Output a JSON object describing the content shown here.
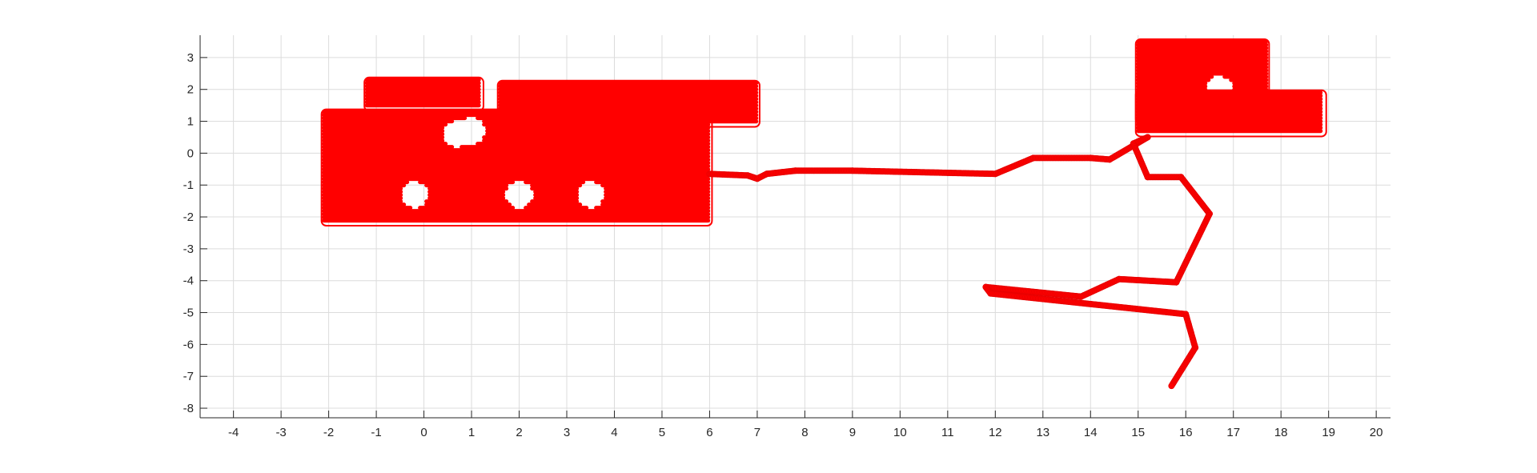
{
  "chart_data": {
    "type": "scatter",
    "xlim": [
      -4.7,
      20.3
    ],
    "ylim": [
      -8.3,
      3.7
    ],
    "x_ticks": [
      "-4",
      "-3",
      "-2",
      "-1",
      "0",
      "1",
      "2",
      "3",
      "4",
      "5",
      "6",
      "7",
      "8",
      "9",
      "10",
      "11",
      "12",
      "13",
      "14",
      "15",
      "16",
      "17",
      "18",
      "19",
      "20"
    ],
    "y_ticks": [
      "3",
      "2",
      "1",
      "0",
      "-1",
      "-2",
      "-3",
      "-4",
      "-5",
      "-6",
      "-7",
      "-8"
    ],
    "grid": true,
    "box": false,
    "series": [
      {
        "color": "#ff0000",
        "marker": "o",
        "clusters": [
          {
            "x_range": [
              -2.1,
              6.0
            ],
            "y_range": [
              -2.2,
              1.3
            ],
            "holes": [
              [
                0.7,
                0.6
              ],
              [
                1.0,
                0.7
              ],
              [
                -0.2,
                -1.3
              ],
              [
                2.0,
                -1.3
              ],
              [
                3.5,
                -1.3
              ]
            ]
          },
          {
            "x_range": [
              -1.2,
              1.2
            ],
            "y_range": [
              1.4,
              2.3
            ]
          },
          {
            "x_range": [
              1.6,
              7.0
            ],
            "y_range": [
              0.9,
              2.2
            ]
          },
          {
            "x_range": [
              15.0,
              17.7
            ],
            "y_range": [
              1.0,
              3.5
            ],
            "holes": [
              [
                16.7,
                2.0
              ]
            ]
          },
          {
            "x_range": [
              15.0,
              18.9
            ],
            "y_range": [
              0.6,
              1.9
            ]
          }
        ],
        "path": [
          [
            6.0,
            -0.65
          ],
          [
            6.8,
            -0.7
          ],
          [
            7.0,
            -0.8
          ],
          [
            7.2,
            -0.65
          ],
          [
            7.8,
            -0.55
          ],
          [
            9.0,
            -0.55
          ],
          [
            12.0,
            -0.65
          ],
          [
            12.8,
            -0.15
          ],
          [
            14.0,
            -0.15
          ],
          [
            14.4,
            -0.2
          ],
          [
            15.2,
            0.5
          ],
          [
            14.9,
            0.3
          ],
          [
            15.2,
            -0.75
          ],
          [
            15.9,
            -0.75
          ],
          [
            16.5,
            -1.9
          ],
          [
            15.8,
            -4.05
          ],
          [
            14.6,
            -3.95
          ],
          [
            13.8,
            -4.5
          ],
          [
            11.8,
            -4.2
          ],
          [
            11.9,
            -4.4
          ],
          [
            16.0,
            -5.05
          ],
          [
            16.2,
            -6.1
          ],
          [
            15.7,
            -7.3
          ]
        ]
      }
    ]
  }
}
